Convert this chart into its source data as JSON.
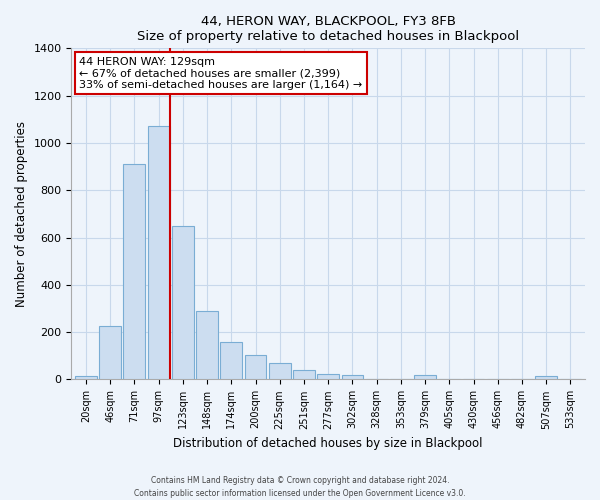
{
  "title": "44, HERON WAY, BLACKPOOL, FY3 8FB",
  "subtitle": "Size of property relative to detached houses in Blackpool",
  "xlabel": "Distribution of detached houses by size in Blackpool",
  "ylabel": "Number of detached properties",
  "bar_labels": [
    "20sqm",
    "46sqm",
    "71sqm",
    "97sqm",
    "123sqm",
    "148sqm",
    "174sqm",
    "200sqm",
    "225sqm",
    "251sqm",
    "277sqm",
    "302sqm",
    "328sqm",
    "353sqm",
    "379sqm",
    "405sqm",
    "430sqm",
    "456sqm",
    "482sqm",
    "507sqm",
    "533sqm"
  ],
  "bar_values": [
    15,
    228,
    910,
    1070,
    650,
    290,
    158,
    105,
    68,
    40,
    25,
    20,
    0,
    0,
    18,
    0,
    0,
    0,
    0,
    14,
    0
  ],
  "bar_color": "#ccddf0",
  "bar_edge_color": "#7aadd4",
  "vline_color": "#cc0000",
  "annotation_title": "44 HERON WAY: 129sqm",
  "annotation_line1": "← 67% of detached houses are smaller (2,399)",
  "annotation_line2": "33% of semi-detached houses are larger (1,164) →",
  "annotation_box_color": "#ffffff",
  "annotation_box_edgecolor": "#cc0000",
  "ylim": [
    0,
    1400
  ],
  "yticks": [
    0,
    200,
    400,
    600,
    800,
    1000,
    1200,
    1400
  ],
  "footer_line1": "Contains HM Land Registry data © Crown copyright and database right 2024.",
  "footer_line2": "Contains public sector information licensed under the Open Government Licence v3.0.",
  "background_color": "#eef4fb",
  "grid_color": "#c8d8eb"
}
